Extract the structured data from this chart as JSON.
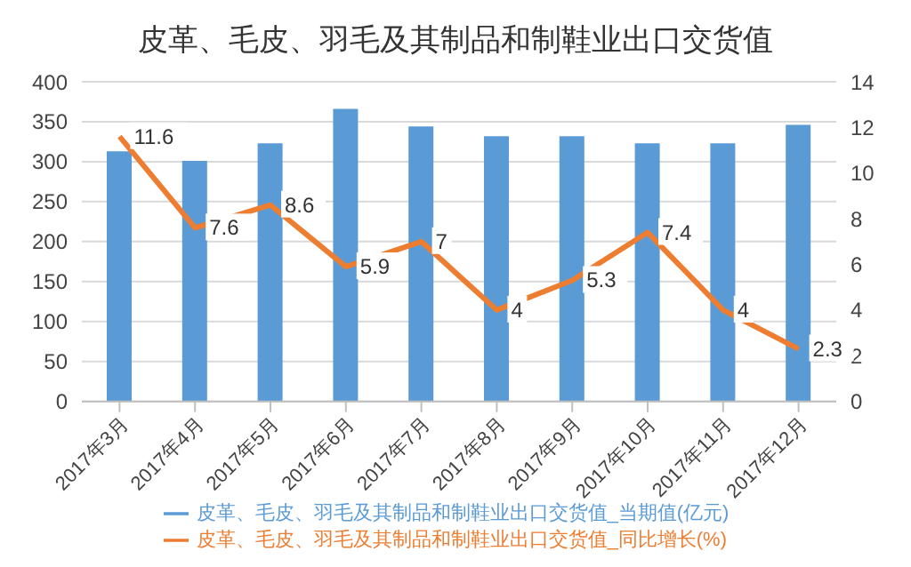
{
  "chart_data": {
    "type": "bar",
    "title": "皮革、毛皮、羽毛及其制品和制鞋业出口交货值",
    "categories": [
      "2017年3月",
      "2017年4月",
      "2017年5月",
      "2017年6月",
      "2017年7月",
      "2017年8月",
      "2017年9月",
      "2017年10月",
      "2017年11月",
      "2017年12月"
    ],
    "series": [
      {
        "name": "皮革、毛皮、羽毛及其制品和制鞋业出口交货值_当期值(亿元)",
        "color": "#5b9bd5",
        "values": [
          313,
          301,
          323,
          366,
          344,
          332,
          332,
          323,
          323,
          346
        ]
      },
      {
        "name": "皮革、毛皮、羽毛及其制品和制鞋业出口交货值_同比增长(%)",
        "type": "line",
        "axis": "y2",
        "color": "#ed7d31",
        "values": [
          11.6,
          7.6,
          8.6,
          5.9,
          7,
          4,
          5.3,
          7.4,
          4,
          2.3
        ],
        "data_labels": true
      }
    ],
    "ylim": [
      0,
      400
    ],
    "yticks": [
      0,
      50,
      100,
      150,
      200,
      250,
      300,
      350,
      400
    ],
    "y2lim": [
      0,
      14
    ],
    "y2ticks": [
      0,
      2,
      4,
      6,
      8,
      10,
      12,
      14
    ],
    "grid": "y",
    "legend": "bottom",
    "marker": "none",
    "line_style": "solid"
  }
}
